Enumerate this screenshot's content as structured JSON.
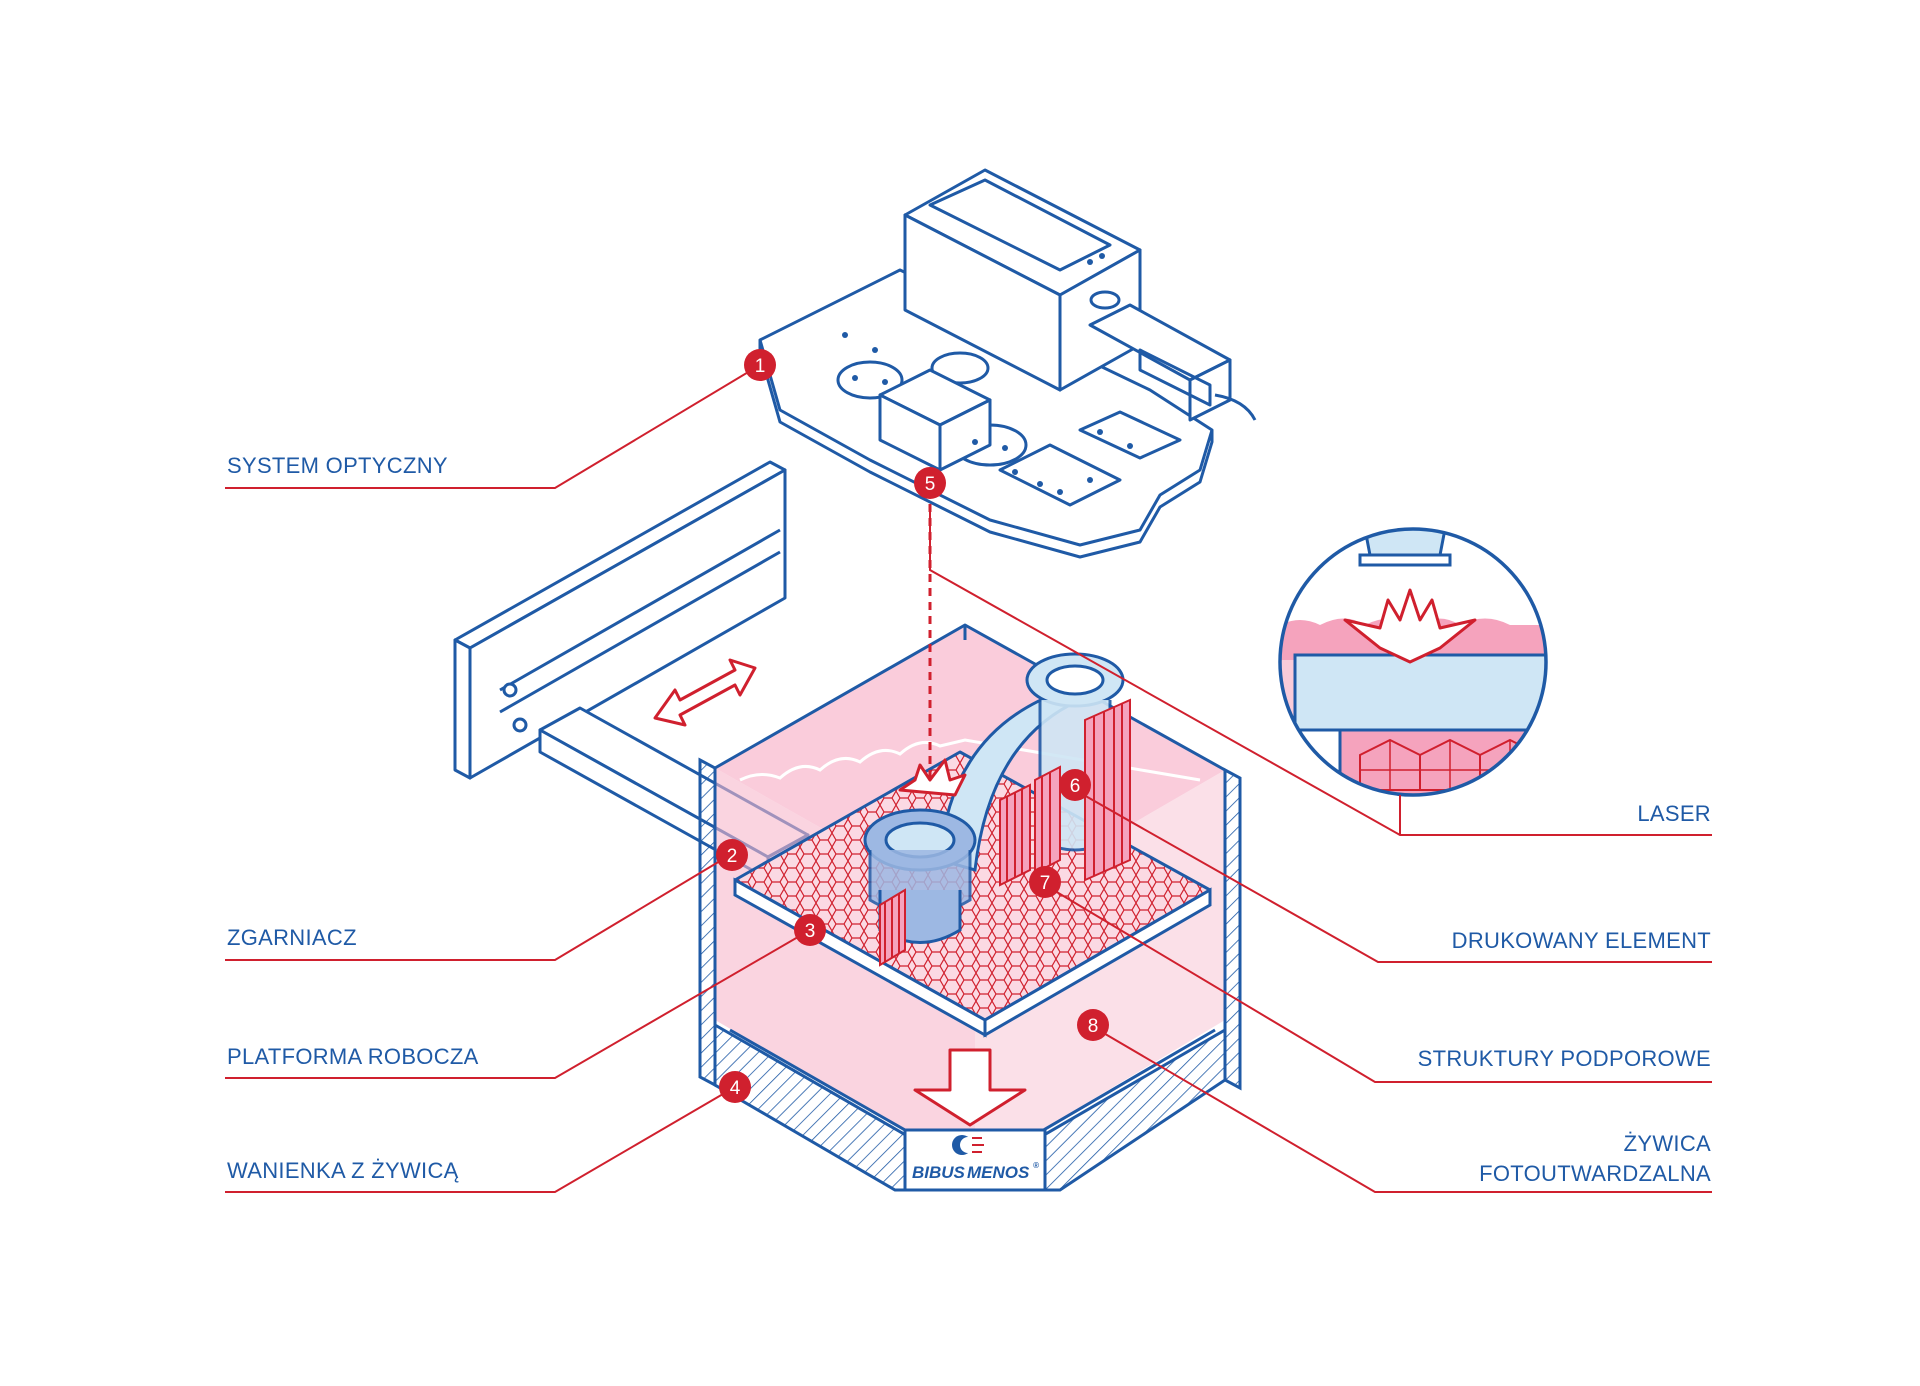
{
  "labels": {
    "system_optyczny": "SYSTEM OPTYCZNY",
    "zgarniacz": "ZGARNIACZ",
    "platforma_robocza": "PLATFORMA ROBOCZA",
    "wanienka": "WANIENKA Z ŻYWICĄ",
    "laser": "LASER",
    "drukowany_element": "DRUKOWANY ELEMENT",
    "struktury_podporowe": "STRUKTURY PODPOROWE",
    "zywica_line1": "ŻYWICA",
    "zywica_line2": "FOTOUTWARDZALNA"
  },
  "markers": [
    "1",
    "2",
    "3",
    "4",
    "5",
    "6",
    "7",
    "8"
  ],
  "logo": {
    "word1": "BIBUS",
    "word2": "MENOS",
    "mark": "®"
  },
  "colors": {
    "line_blue": "#1f5aa6",
    "accent_red": "#d0202e",
    "resin_pink": "#f5a3bd",
    "glass_blue": "#cfe6f5"
  }
}
